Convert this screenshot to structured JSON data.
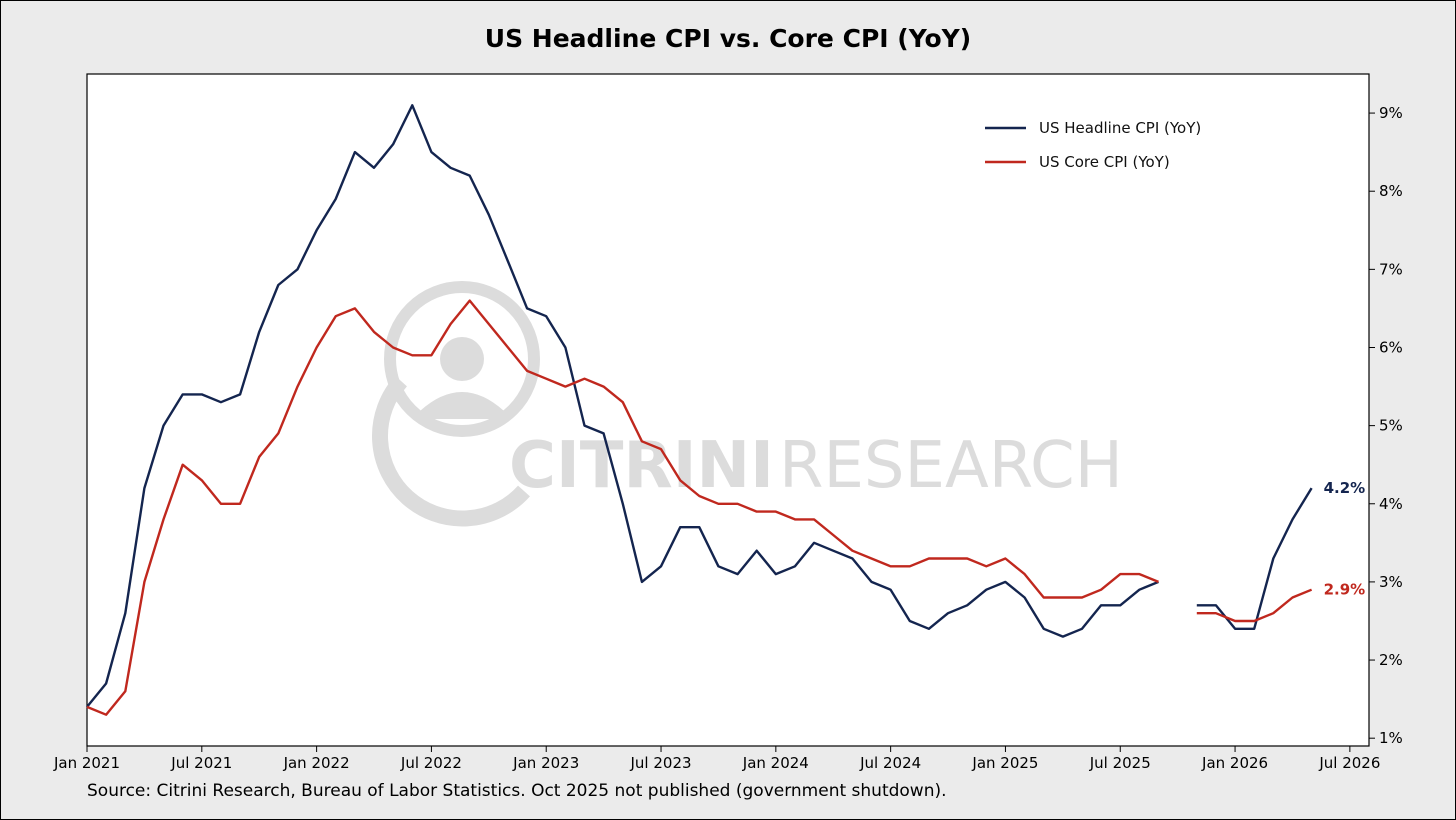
{
  "chart_data": {
    "type": "line",
    "title": "US Headline CPI vs. Core CPI (YoY)",
    "source": "Source: Citrini Research, Bureau of Labor Statistics. Oct 2025 not published (government shutdown).",
    "watermark": {
      "bold": "CITRINI",
      "light": "RESEARCH"
    },
    "x_range": [
      "2021-01",
      "2026-08"
    ],
    "ylim": [
      0.9,
      9.5
    ],
    "y_ticks": [
      1,
      2,
      3,
      4,
      5,
      6,
      7,
      8,
      9
    ],
    "y_tick_suffix": "%",
    "y_axis_side": "right",
    "x_ticks": [
      {
        "date": "2021-01",
        "label": "Jan 2021"
      },
      {
        "date": "2021-07",
        "label": "Jul 2021"
      },
      {
        "date": "2022-01",
        "label": "Jan 2022"
      },
      {
        "date": "2022-07",
        "label": "Jul 2022"
      },
      {
        "date": "2023-01",
        "label": "Jan 2023"
      },
      {
        "date": "2023-07",
        "label": "Jul 2023"
      },
      {
        "date": "2024-01",
        "label": "Jan 2024"
      },
      {
        "date": "2024-07",
        "label": "Jul 2024"
      },
      {
        "date": "2025-01",
        "label": "Jan 2025"
      },
      {
        "date": "2025-07",
        "label": "Jul 2025"
      },
      {
        "date": "2026-01",
        "label": "Jan 2026"
      },
      {
        "date": "2026-07",
        "label": "Jul 2026"
      }
    ],
    "grid": false,
    "legend_position": "top-right",
    "start_month": "2021-01",
    "series": [
      {
        "name": "US Headline CPI (YoY)",
        "color": "#14254f",
        "end_label": "4.2%",
        "values": [
          1.4,
          1.7,
          2.6,
          4.2,
          5.0,
          5.4,
          5.4,
          5.3,
          5.4,
          6.2,
          6.8,
          7.0,
          7.5,
          7.9,
          8.5,
          8.3,
          8.6,
          9.1,
          8.5,
          8.3,
          8.2,
          7.7,
          7.1,
          6.5,
          6.4,
          6.0,
          5.0,
          4.9,
          4.0,
          3.0,
          3.2,
          3.7,
          3.7,
          3.2,
          3.1,
          3.4,
          3.1,
          3.2,
          3.5,
          3.4,
          3.3,
          3.0,
          2.9,
          2.5,
          2.4,
          2.6,
          2.7,
          2.9,
          3.0,
          2.8,
          2.4,
          2.3,
          2.4,
          2.7,
          2.7,
          2.9,
          3.0,
          null,
          2.7,
          2.7,
          2.4,
          2.4,
          3.3,
          3.8,
          4.2
        ]
      },
      {
        "name": "US Core CPI (YoY)",
        "color": "#c0281e",
        "end_label": "2.9%",
        "values": [
          1.4,
          1.3,
          1.6,
          3.0,
          3.8,
          4.5,
          4.3,
          4.0,
          4.0,
          4.6,
          4.9,
          5.5,
          6.0,
          6.4,
          6.5,
          6.2,
          6.0,
          5.9,
          5.9,
          6.3,
          6.6,
          6.3,
          6.0,
          5.7,
          5.6,
          5.5,
          5.6,
          5.5,
          5.3,
          4.8,
          4.7,
          4.3,
          4.1,
          4.0,
          4.0,
          3.9,
          3.9,
          3.8,
          3.8,
          3.6,
          3.4,
          3.3,
          3.2,
          3.2,
          3.3,
          3.3,
          3.3,
          3.2,
          3.3,
          3.1,
          2.8,
          2.8,
          2.8,
          2.9,
          3.1,
          3.1,
          3.0,
          null,
          2.6,
          2.6,
          2.5,
          2.5,
          2.6,
          2.8,
          2.9
        ]
      }
    ]
  }
}
